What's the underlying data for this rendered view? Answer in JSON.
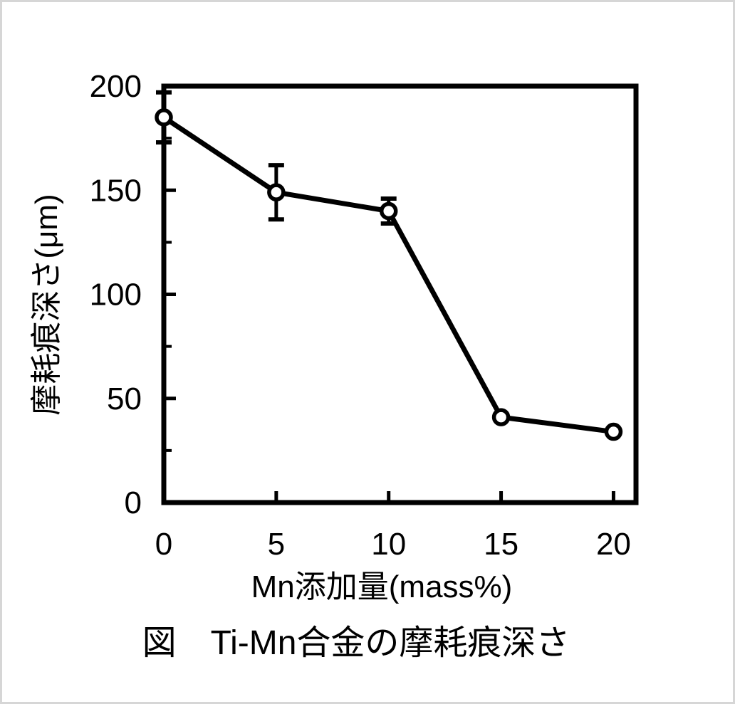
{
  "figure": {
    "caption": "図　Ti-Mn合金の摩耗痕深さ"
  },
  "chart_data": {
    "type": "line",
    "title": "図　Ti-Mn合金の摩耗痕深さ",
    "xlabel": "Mn添加量(mass%)",
    "ylabel": "摩耗痕深さ(μm)",
    "x": [
      0,
      5,
      10,
      15,
      20
    ],
    "series": [
      {
        "name": "Ti-Mn合金の摩耗痕深さ",
        "values": [
          185,
          149,
          140,
          41,
          34
        ],
        "errors": [
          12,
          13,
          6,
          0,
          0
        ]
      }
    ],
    "xlim": [
      0,
      21
    ],
    "ylim": [
      0,
      200
    ],
    "x_ticks": [
      0,
      5,
      10,
      15,
      20
    ],
    "y_ticks": [
      0,
      50,
      100,
      150,
      200
    ],
    "y_minor_ticks": [
      25,
      75,
      125,
      175
    ],
    "grid": false,
    "legend": false,
    "marker": "open-circle",
    "line_color": "#000000",
    "marker_fill": "#ffffff",
    "text_color": "#000000"
  }
}
